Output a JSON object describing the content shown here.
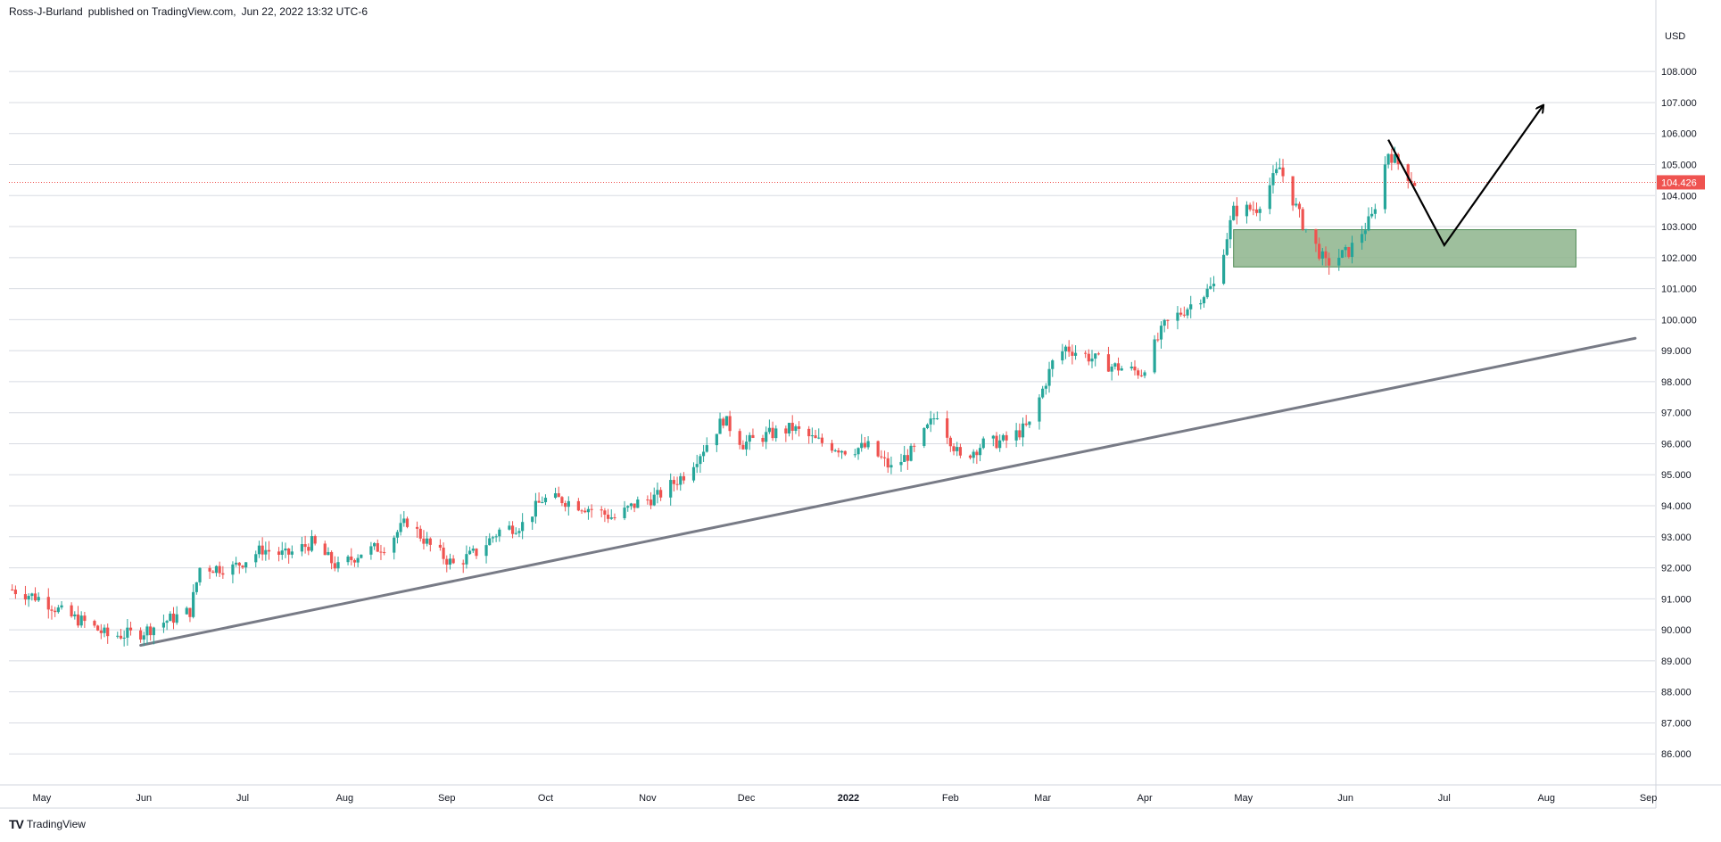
{
  "header": {
    "author": "Ross-J-Burland",
    "published_text": "published on TradingView.com,",
    "date": "Jun 22, 2022 13:32 UTC-6"
  },
  "footer": {
    "logo": "TV",
    "brand": "TradingView"
  },
  "colors": {
    "up": "#26a69a",
    "down": "#ef5350",
    "trendline": "#787b86",
    "zone": "#8db48c",
    "price_tag": "#ef5350"
  },
  "chart_data": {
    "type": "candlestick",
    "currency_label": "USD",
    "last_price": "104.426",
    "ylim": [
      85.0,
      109.5
    ],
    "y_ticks": [
      "86.000",
      "87.000",
      "88.000",
      "89.000",
      "90.000",
      "91.000",
      "92.000",
      "93.000",
      "94.000",
      "95.000",
      "96.000",
      "97.000",
      "98.000",
      "99.000",
      "100.000",
      "101.000",
      "102.000",
      "103.000",
      "104.000",
      "105.000",
      "106.000",
      "107.000",
      "108.000"
    ],
    "x_range": [
      "2021-04-21",
      "2022-09-03"
    ],
    "x_ticks": [
      {
        "label": "May",
        "date": "2021-05-01"
      },
      {
        "label": "Jun",
        "date": "2021-06-01"
      },
      {
        "label": "Jul",
        "date": "2021-07-01"
      },
      {
        "label": "Aug",
        "date": "2021-08-01"
      },
      {
        "label": "Sep",
        "date": "2021-09-01"
      },
      {
        "label": "Oct",
        "date": "2021-10-01"
      },
      {
        "label": "Nov",
        "date": "2021-11-01"
      },
      {
        "label": "Dec",
        "date": "2021-12-01"
      },
      {
        "label": "2022",
        "date": "2022-01-01",
        "bold": true
      },
      {
        "label": "Feb",
        "date": "2022-02-01"
      },
      {
        "label": "Mar",
        "date": "2022-03-01"
      },
      {
        "label": "Apr",
        "date": "2022-04-01"
      },
      {
        "label": "May",
        "date": "2022-05-01"
      },
      {
        "label": "Jun",
        "date": "2022-06-01"
      },
      {
        "label": "Jul",
        "date": "2022-07-01"
      },
      {
        "label": "Aug",
        "date": "2022-08-01"
      },
      {
        "label": "Sep",
        "date": "2022-09-01"
      }
    ],
    "close_path": [
      [
        "2021-04-22",
        91.3
      ],
      [
        "2021-05-01",
        91.0
      ],
      [
        "2021-05-08",
        90.5
      ],
      [
        "2021-05-15",
        90.2
      ],
      [
        "2021-05-21",
        89.8
      ],
      [
        "2021-05-31",
        89.9
      ],
      [
        "2021-06-08",
        90.3
      ],
      [
        "2021-06-15",
        90.6
      ],
      [
        "2021-06-18",
        92.0
      ],
      [
        "2021-06-28",
        92.0
      ],
      [
        "2021-07-07",
        92.6
      ],
      [
        "2021-07-14",
        92.4
      ],
      [
        "2021-07-22",
        92.8
      ],
      [
        "2021-07-30",
        92.0
      ],
      [
        "2021-08-06",
        92.5
      ],
      [
        "2021-08-13",
        92.7
      ],
      [
        "2021-08-20",
        93.5
      ],
      [
        "2021-08-27",
        92.7
      ],
      [
        "2021-09-03",
        92.1
      ],
      [
        "2021-09-10",
        92.5
      ],
      [
        "2021-09-17",
        93.2
      ],
      [
        "2021-09-24",
        93.4
      ],
      [
        "2021-09-30",
        94.2
      ],
      [
        "2021-10-06",
        94.2
      ],
      [
        "2021-10-15",
        93.9
      ],
      [
        "2021-10-22",
        93.6
      ],
      [
        "2021-10-29",
        94.1
      ],
      [
        "2021-11-04",
        94.3
      ],
      [
        "2021-11-12",
        95.0
      ],
      [
        "2021-11-19",
        96.0
      ],
      [
        "2021-11-24",
        96.8
      ],
      [
        "2021-11-30",
        96.0
      ],
      [
        "2021-12-08",
        96.3
      ],
      [
        "2021-12-15",
        96.5
      ],
      [
        "2021-12-22",
        96.1
      ],
      [
        "2021-12-31",
        95.8
      ],
      [
        "2022-01-07",
        95.9
      ],
      [
        "2022-01-14",
        95.2
      ],
      [
        "2022-01-21",
        95.8
      ],
      [
        "2022-01-28",
        97.0
      ],
      [
        "2022-02-04",
        95.5
      ],
      [
        "2022-02-11",
        96.0
      ],
      [
        "2022-02-18",
        96.1
      ],
      [
        "2022-02-25",
        96.6
      ],
      [
        "2022-03-04",
        98.6
      ],
      [
        "2022-03-08",
        99.1
      ],
      [
        "2022-03-15",
        98.8
      ],
      [
        "2022-03-22",
        98.5
      ],
      [
        "2022-03-31",
        98.3
      ],
      [
        "2022-04-07",
        99.8
      ],
      [
        "2022-04-14",
        100.4
      ],
      [
        "2022-04-22",
        101.1
      ],
      [
        "2022-04-28",
        103.5
      ],
      [
        "2022-05-05",
        103.6
      ],
      [
        "2022-05-12",
        104.9
      ],
      [
        "2022-05-19",
        103.1
      ],
      [
        "2022-05-26",
        101.8
      ],
      [
        "2022-06-02",
        102.2
      ],
      [
        "2022-06-09",
        103.3
      ],
      [
        "2022-06-14",
        105.4
      ],
      [
        "2022-06-22",
        104.4
      ]
    ],
    "trendline": {
      "from": [
        "2021-05-31",
        89.5
      ],
      "to": [
        "2022-08-28",
        99.4
      ]
    },
    "demand_zone": {
      "from": "2022-04-28",
      "to": "2022-08-10",
      "low": 101.7,
      "high": 102.9
    },
    "projection_path": [
      [
        "2022-06-14",
        105.8
      ],
      [
        "2022-07-01",
        102.4
      ],
      [
        "2022-07-31",
        106.9
      ]
    ]
  }
}
